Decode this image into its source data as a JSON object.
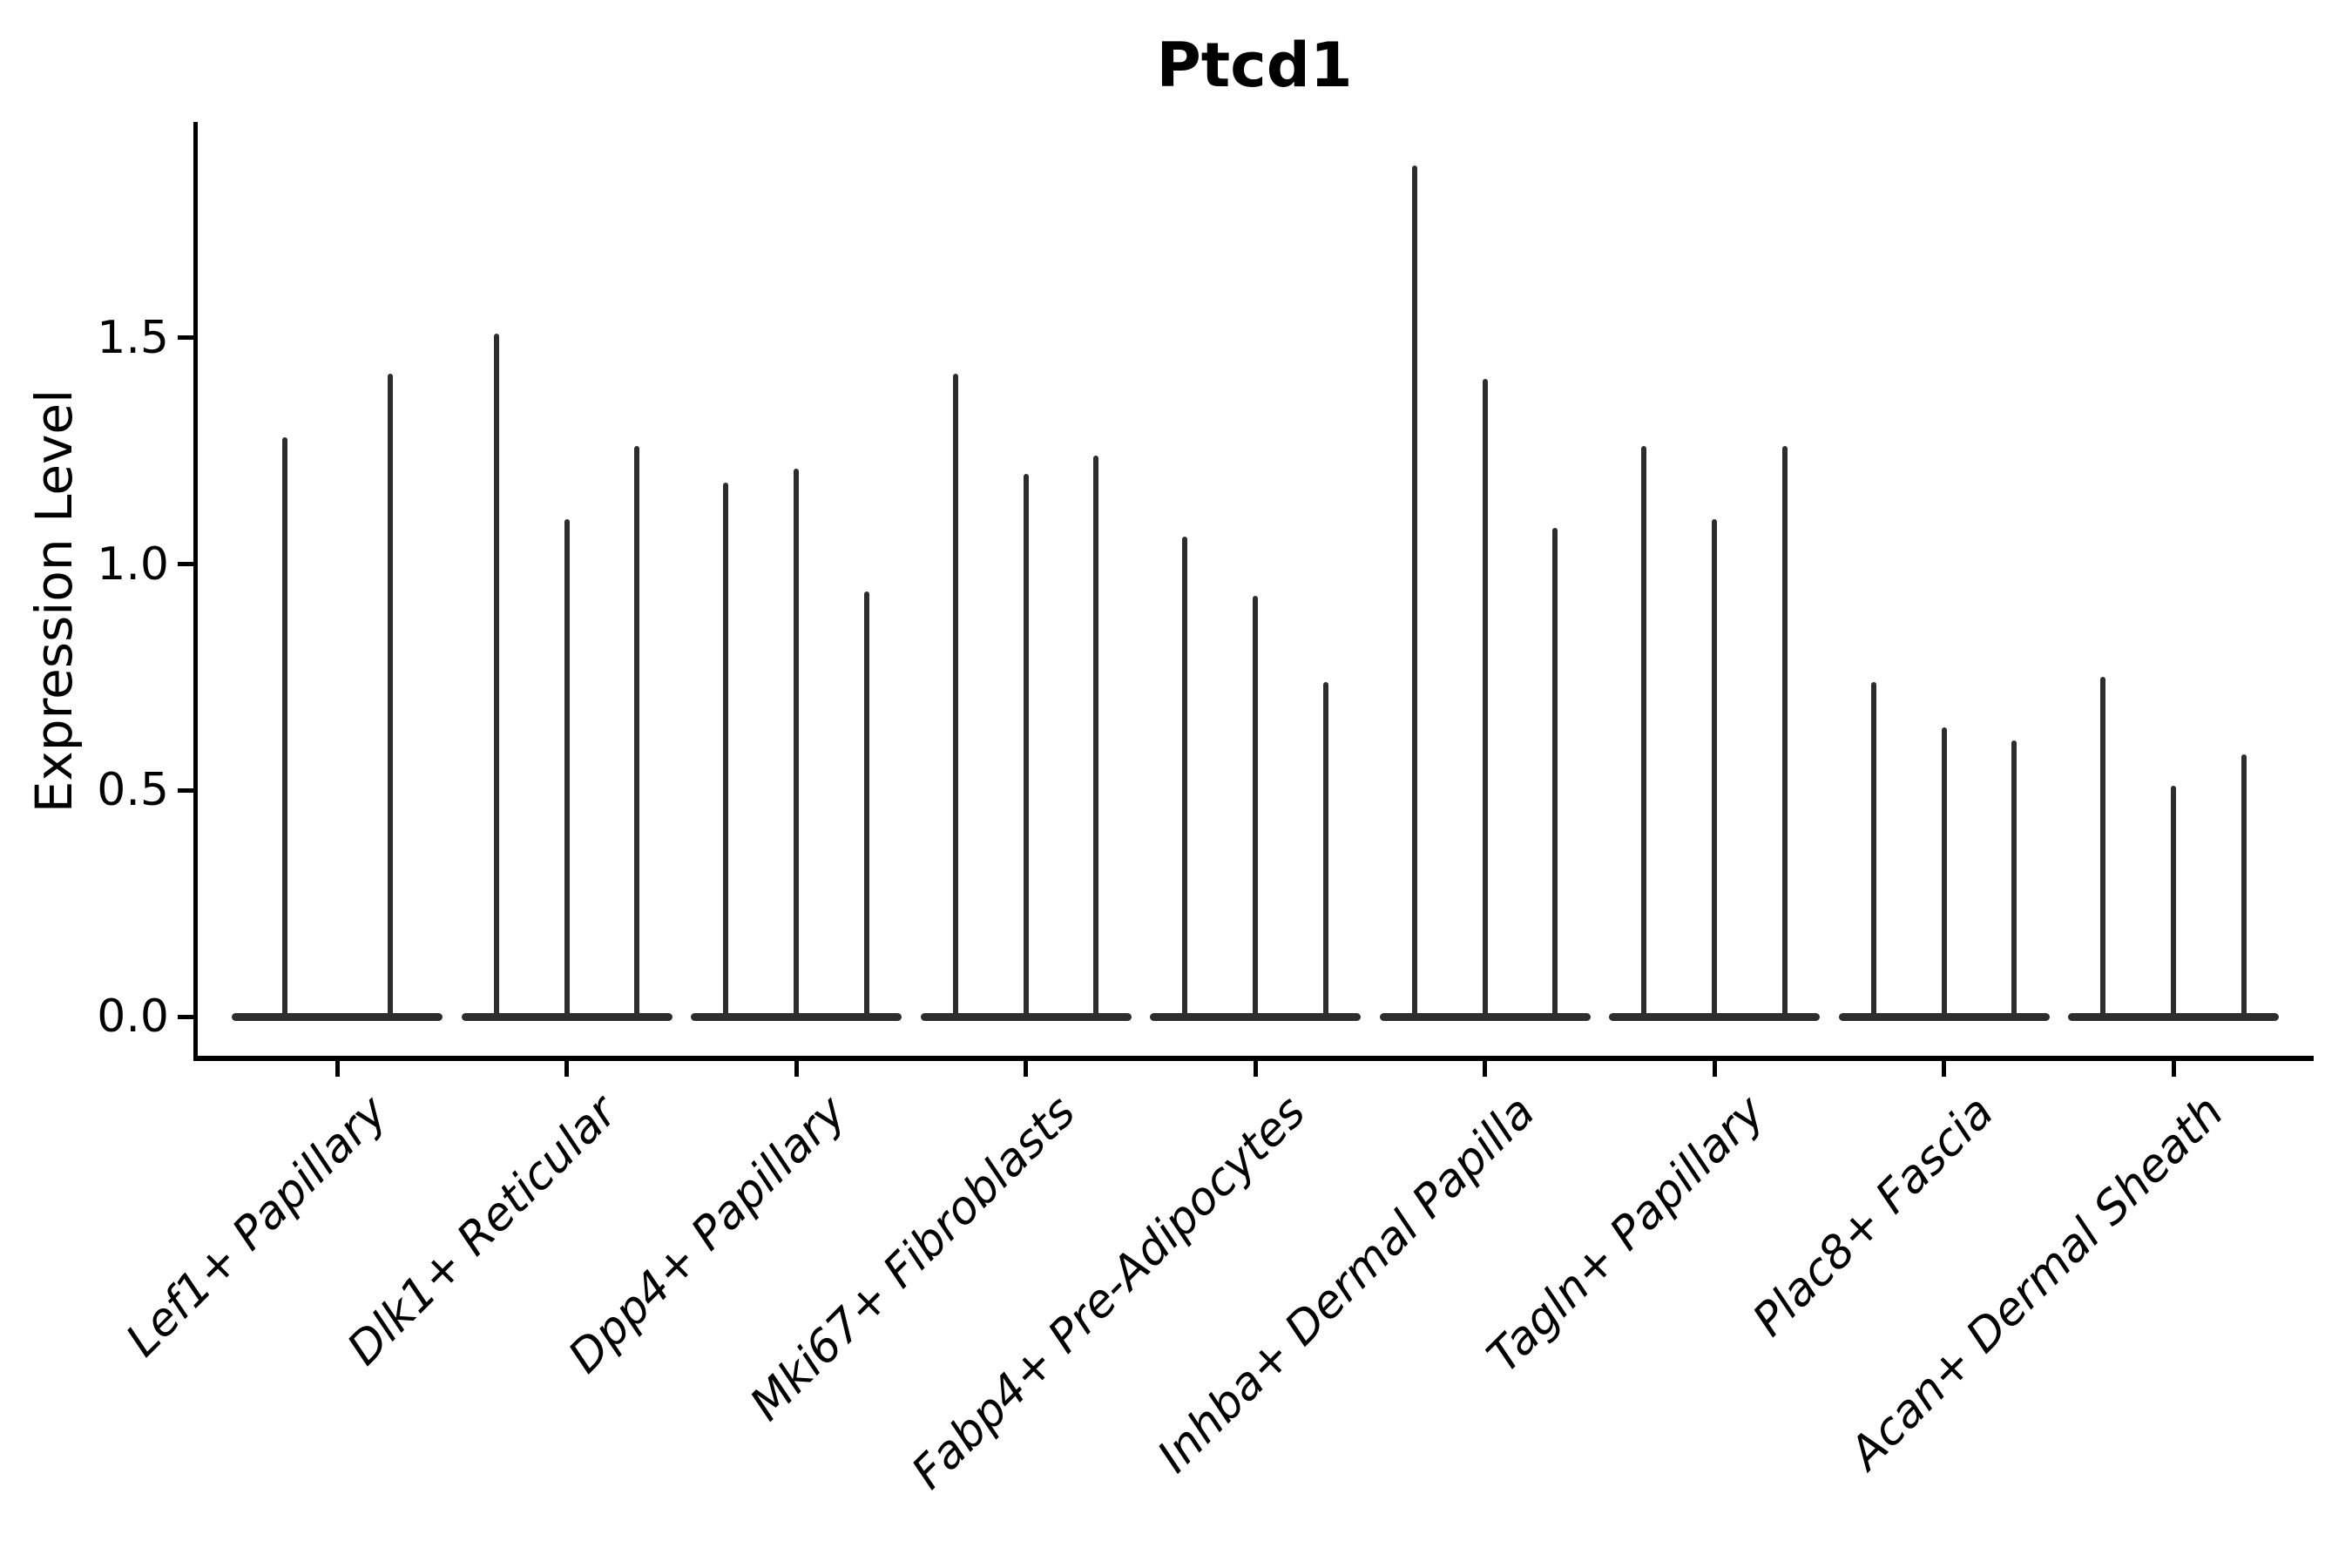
{
  "chart_data": {
    "type": "violin",
    "title": "Ptcd1",
    "ylabel": "Expression Level",
    "xlabel": "",
    "yticks": [
      0.0,
      0.5,
      1.0,
      1.5
    ],
    "ytick_labels": [
      "0.0",
      "0.5",
      "1.0",
      "1.5"
    ],
    "ylim": [
      -0.09,
      1.98
    ],
    "grid": false,
    "legend": "none",
    "style_note": "sparse single-cell expression violins: wide flat body at 0 with thin density spike up to max expression",
    "categories": [
      "Lef1+ Papillary",
      "Dlk1+ Reticular",
      "Dpp4+ Papillary",
      "Mki67+ Fibroblasts",
      "Fabp4+ Pre-Adipocytes",
      "Inhba+ Dermal Papilla",
      "Tagln+ Papillary",
      "Plac8+ Fascia",
      "Acan+ Dermal Sheath"
    ],
    "groups": [
      {
        "label": "Lef1+ Papillary",
        "violin_max_expression": [
          1.28,
          1.42
        ]
      },
      {
        "label": "Dlk1+ Reticular",
        "violin_max_expression": [
          1.51,
          1.1,
          1.26
        ]
      },
      {
        "label": "Dpp4+ Papillary",
        "violin_max_expression": [
          1.18,
          1.21,
          0.94
        ]
      },
      {
        "label": "Mki67+ Fibroblasts",
        "violin_max_expression": [
          1.42,
          1.2,
          1.24
        ]
      },
      {
        "label": "Fabp4+ Pre-Adipocytes",
        "violin_max_expression": [
          1.06,
          0.93,
          0.74
        ]
      },
      {
        "label": "Inhba+ Dermal Papilla",
        "violin_max_expression": [
          1.88,
          1.41,
          1.08
        ]
      },
      {
        "label": "Tagln+ Papillary",
        "violin_max_expression": [
          1.26,
          1.1,
          1.26
        ]
      },
      {
        "label": "Plac8+ Fascia",
        "violin_max_expression": [
          0.74,
          0.64,
          0.61
        ]
      },
      {
        "label": "Acan+ Dermal Sheath",
        "violin_max_expression": [
          0.75,
          0.51,
          0.58
        ]
      }
    ],
    "violin_body_value": 0.0,
    "colors": {
      "violin": "#2d2d2d",
      "axis": "#000000",
      "text": "#000000",
      "background": "#ffffff"
    }
  }
}
